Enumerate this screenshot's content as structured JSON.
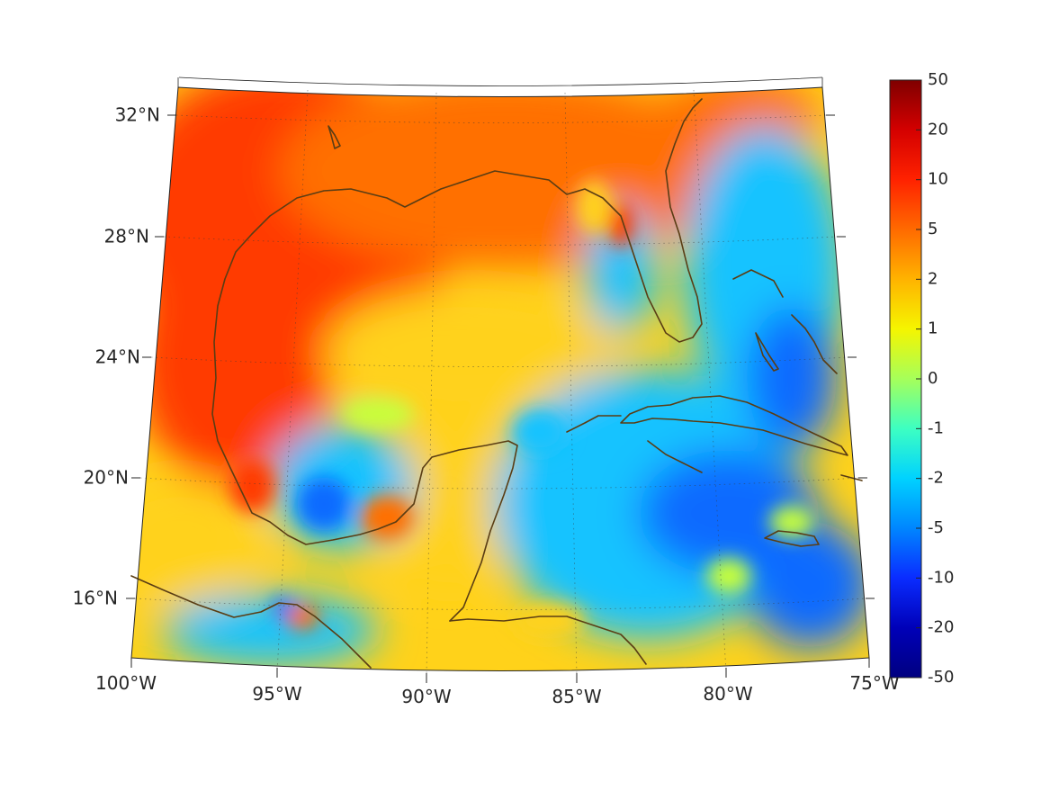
{
  "map": {
    "lat_labels": [
      "32°N",
      "28°N",
      "24°N",
      "20°N",
      "16°N"
    ],
    "lon_labels": [
      "100°W",
      "95°W",
      "90°W",
      "85°W",
      "80°W",
      "75°W"
    ]
  },
  "colorbar": {
    "tick_labels": [
      "50",
      "20",
      "10",
      "5",
      "2",
      "1",
      "0",
      "-1",
      "-2",
      "-5",
      "-10",
      "-20",
      "-50"
    ],
    "colors": [
      "#7f0000",
      "#d40000",
      "#ff2200",
      "#ff6a00",
      "#ffb300",
      "#f5f500",
      "#a6ff5a",
      "#3dffc2",
      "#00d2ff",
      "#0086ff",
      "#0a2cff",
      "#0000b8",
      "#000080"
    ]
  },
  "field_palette": {
    "warm_strong": "#ff3a00",
    "warm": "#ff6f00",
    "mid": "#ffd21a",
    "neutral": "#c8ff3a",
    "cool": "#19c3ff",
    "cool_strong": "#0a6bff"
  },
  "coastline_color": "#5a3d14"
}
